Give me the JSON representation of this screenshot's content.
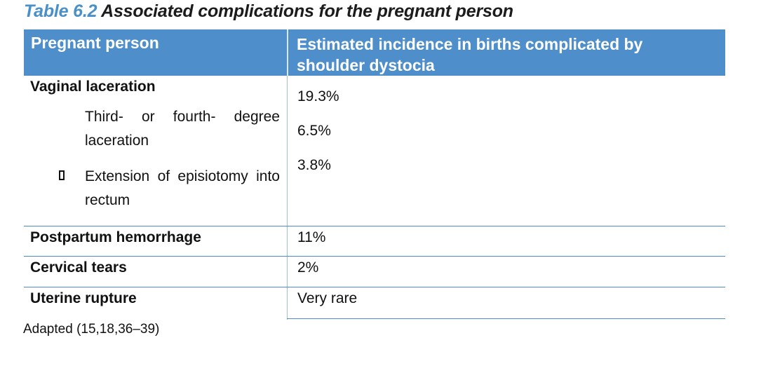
{
  "caption": {
    "number": "Table 6.2",
    "title": "Associated complications for the pregnant person"
  },
  "header": {
    "col1": "Pregnant person",
    "col2": "Estimated incidence in births complicated by shoulder dystocia"
  },
  "rows": {
    "vaginal_laceration": {
      "label": "Vaginal laceration",
      "value": "19.3%"
    },
    "third_fourth_degree": {
      "label": "Third- or fourth- degree laceration",
      "value": "6.5%"
    },
    "episiotomy_extension": {
      "label": "Extension of episiotomy into rectum",
      "value": "3.8%"
    },
    "postpartum_hemorrhage": {
      "label": "Postpartum hemorrhage",
      "value": "11%"
    },
    "cervical_tears": {
      "label": "Cervical tears",
      "value": "2%"
    },
    "uterine_rupture": {
      "label": "Uterine rupture",
      "value": "Very rare"
    }
  },
  "footnote": "Adapted (15,18,36–39)"
}
